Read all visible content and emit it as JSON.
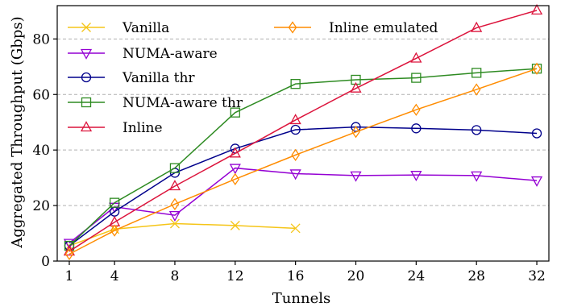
{
  "chart_data": {
    "type": "line",
    "xlabel": "Tunnels",
    "ylabel": "Aggregated Throughput (Gbps)",
    "xlim": [
      0.2,
      32.8
    ],
    "ylim": [
      0,
      92
    ],
    "xticks": [
      1,
      4,
      8,
      12,
      16,
      20,
      24,
      28,
      32
    ],
    "yticks": [
      0,
      20,
      40,
      60,
      80
    ],
    "grid": "horizontal dashed",
    "legend_position": "top-left, two columns",
    "series": [
      {
        "name": "Vanilla",
        "color": "#f5c518",
        "marker": "x",
        "x": [
          1,
          4,
          8,
          12,
          16
        ],
        "y": [
          5.5,
          11.5,
          13.5,
          12.8,
          11.8
        ]
      },
      {
        "name": "NUMA-aware",
        "color": "#9400d3",
        "marker": "triangle-down",
        "x": [
          1,
          4,
          8,
          12,
          16,
          20,
          24,
          28,
          32
        ],
        "y": [
          6.5,
          19.5,
          16.5,
          33.5,
          31.5,
          30.8,
          31.0,
          30.8,
          29.0
        ]
      },
      {
        "name": "Vanilla thr",
        "color": "#00008b",
        "marker": "circle",
        "x": [
          1,
          4,
          8,
          12,
          16,
          20,
          24,
          28,
          32
        ],
        "y": [
          5.5,
          17.8,
          31.8,
          40.5,
          47.3,
          48.3,
          47.8,
          47.2,
          46.0
        ]
      },
      {
        "name": "NUMA-aware thr",
        "color": "#2e8b22",
        "marker": "square",
        "x": [
          1,
          4,
          8,
          12,
          16,
          20,
          24,
          28,
          32
        ],
        "y": [
          5.5,
          21.0,
          33.5,
          53.5,
          63.8,
          65.3,
          66.0,
          67.8,
          69.3
        ]
      },
      {
        "name": "Inline",
        "color": "#dc143c",
        "marker": "triangle-up",
        "x": [
          1,
          4,
          8,
          12,
          16,
          20,
          24,
          28,
          32
        ],
        "y": [
          3.5,
          14.0,
          27.0,
          38.8,
          50.8,
          62.2,
          73.0,
          84.0,
          90.3
        ]
      },
      {
        "name": "Inline emulated",
        "color": "#ff8c00",
        "marker": "diamond",
        "x": [
          1,
          4,
          8,
          12,
          16,
          20,
          24,
          28,
          32
        ],
        "y": [
          2.5,
          11.0,
          20.5,
          29.5,
          38.2,
          46.5,
          54.5,
          61.8,
          69.3
        ]
      }
    ]
  }
}
